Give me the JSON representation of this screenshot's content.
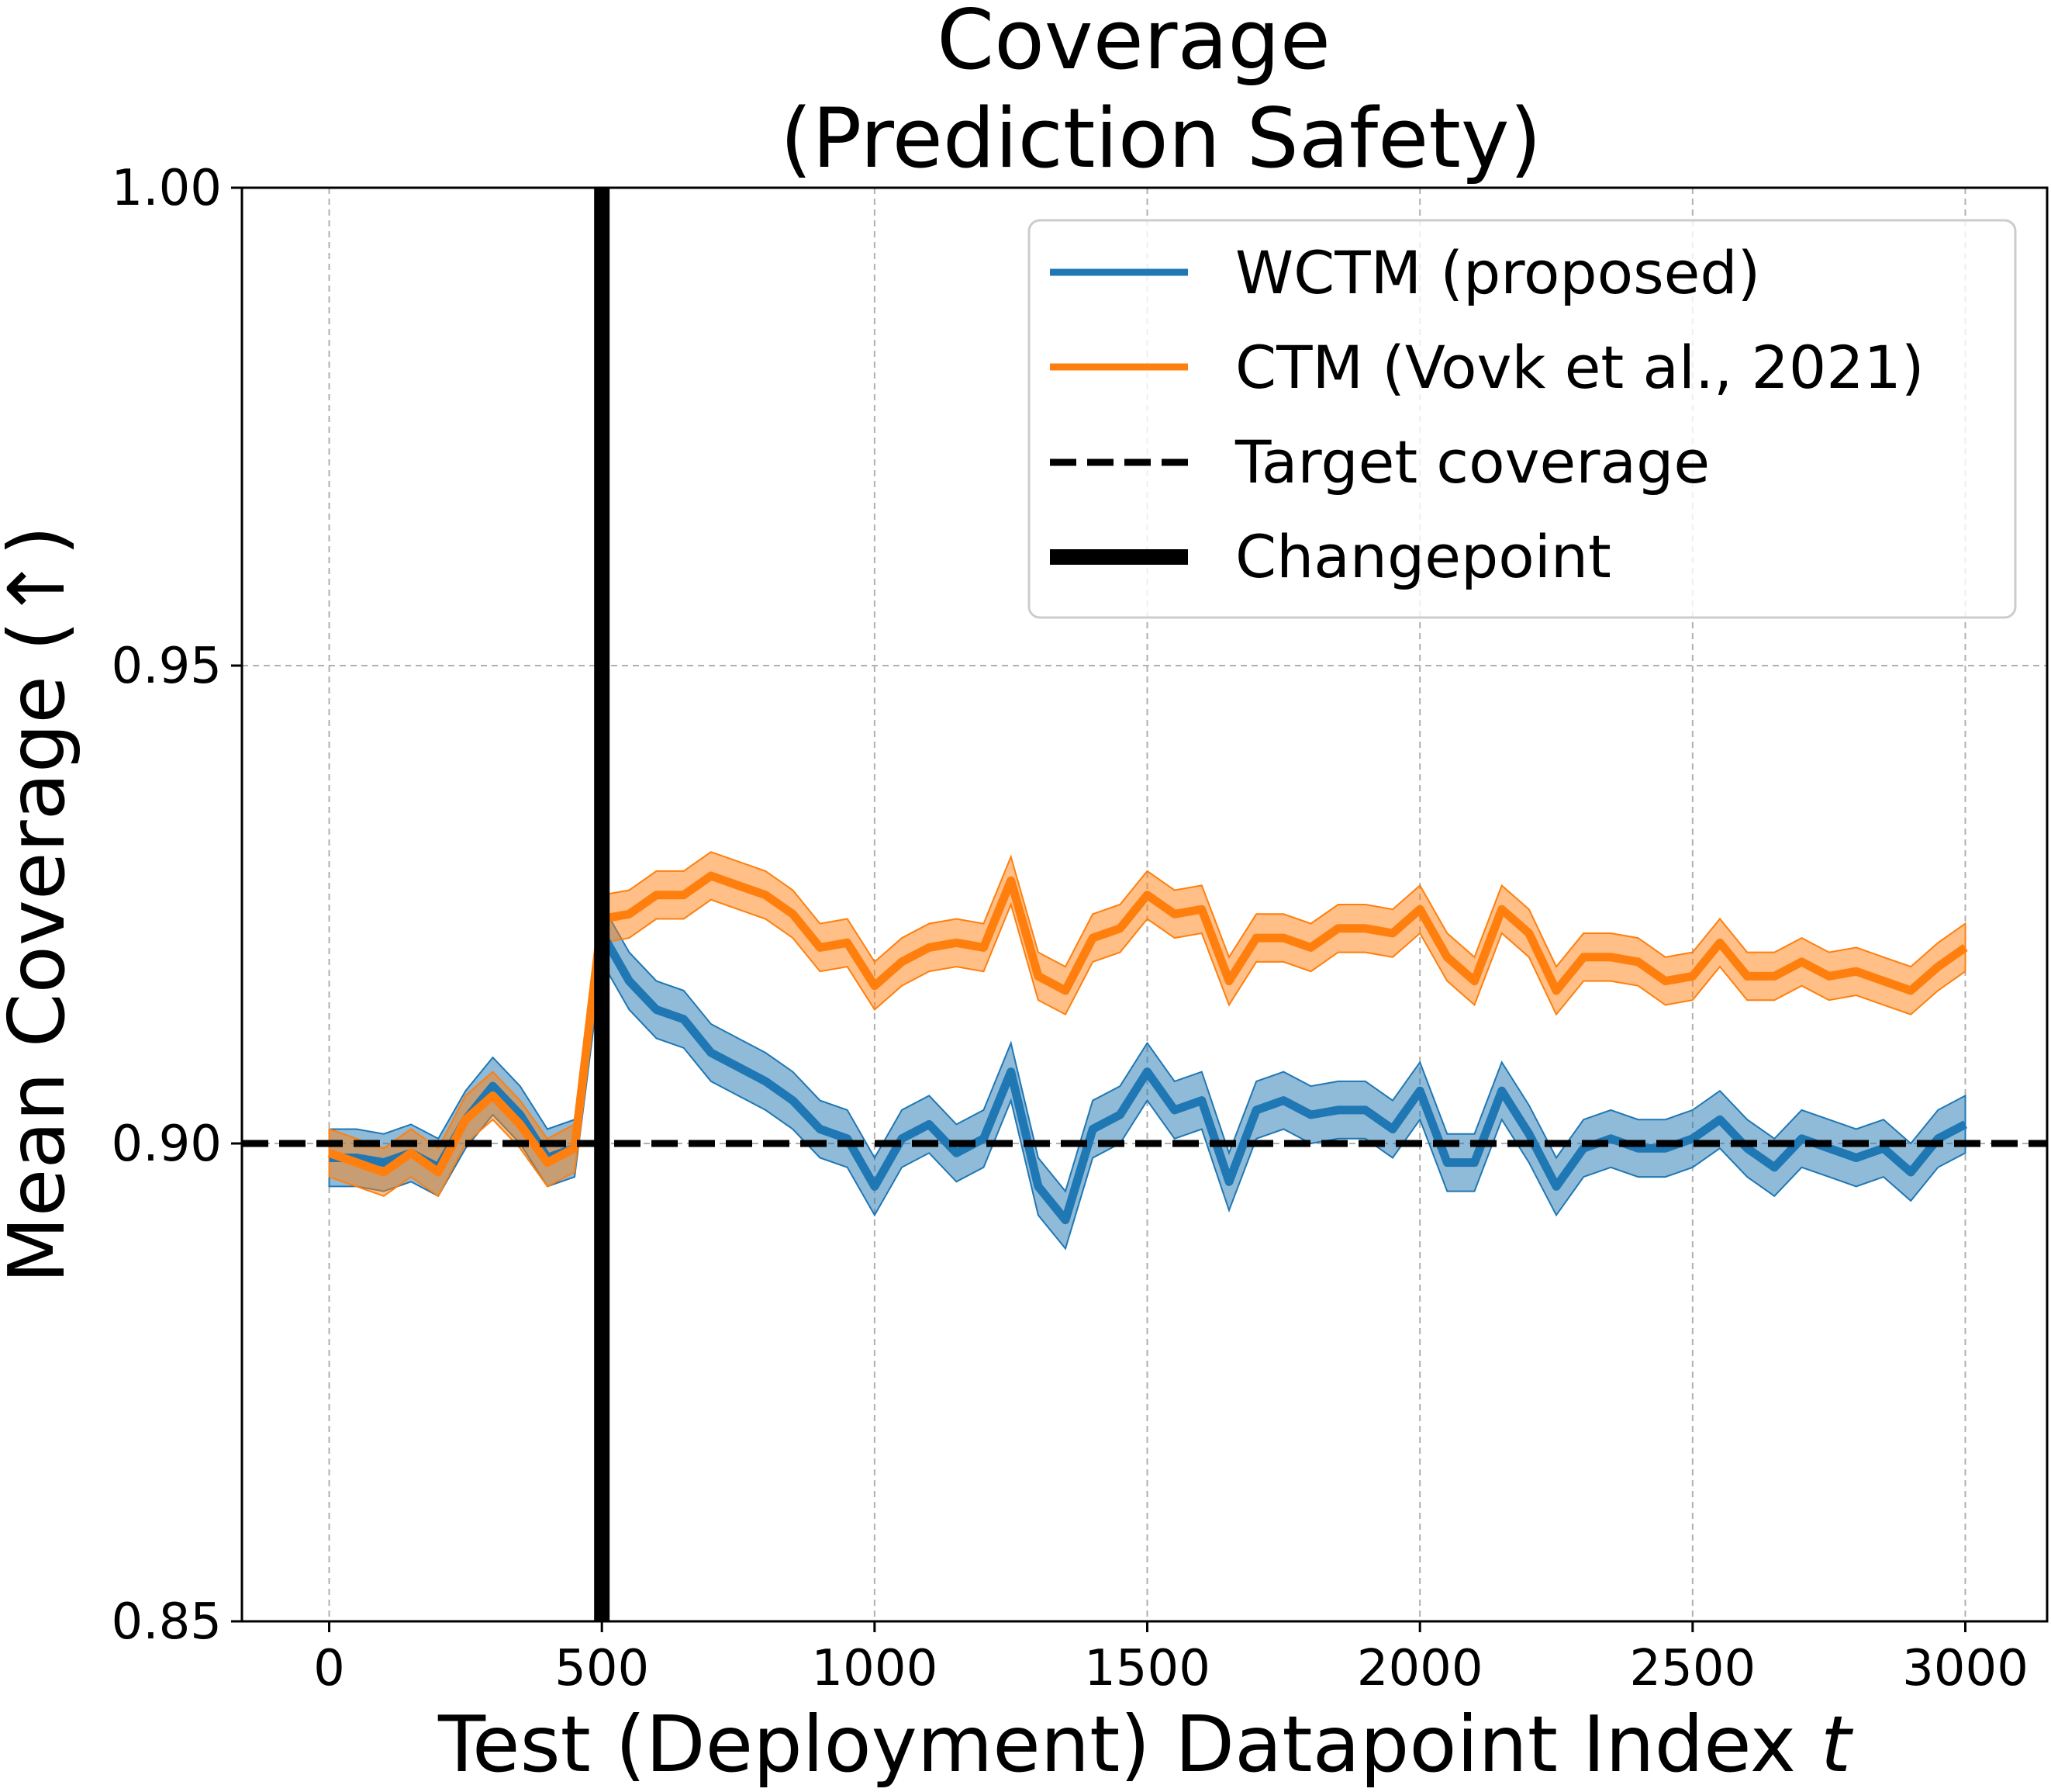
{
  "chart_data": {
    "type": "line",
    "title_lines": [
      "Coverage",
      "(Prediction Safety)"
    ],
    "xlabel": "Test (Deployment) Datapoint Index ",
    "xlabel_italic": "t",
    "ylabel": "Mean Coverage (↑)",
    "xlim": [
      -160,
      3150
    ],
    "ylim": [
      0.85,
      1.0
    ],
    "xticks": [
      0,
      500,
      1000,
      1500,
      2000,
      2500,
      3000
    ],
    "xtick_labels": [
      "0",
      "500",
      "1000",
      "1500",
      "2000",
      "2500",
      "3000"
    ],
    "yticks": [
      0.85,
      0.9,
      0.95,
      1.0
    ],
    "ytick_labels": [
      "0.85",
      "0.90",
      "0.95",
      "1.00"
    ],
    "grid": true,
    "legend_position": "top-right",
    "target_coverage": 0.9,
    "changepoint": 500,
    "x": [
      0,
      50,
      100,
      150,
      200,
      250,
      300,
      350,
      400,
      450,
      500,
      550,
      600,
      650,
      700,
      750,
      800,
      850,
      900,
      950,
      1000,
      1050,
      1100,
      1150,
      1200,
      1250,
      1300,
      1350,
      1400,
      1450,
      1500,
      1550,
      1600,
      1650,
      1700,
      1750,
      1800,
      1850,
      1900,
      1950,
      2000,
      2050,
      2100,
      2150,
      2200,
      2250,
      2300,
      2350,
      2400,
      2450,
      2500,
      2550,
      2600,
      2650,
      2700,
      2750,
      2800,
      2850,
      2900,
      2950,
      3000
    ],
    "series": [
      {
        "name": "WCTM (proposed)",
        "color": "#1f77b4",
        "values": [
          0.8985,
          0.8985,
          0.898,
          0.899,
          0.8975,
          0.9025,
          0.906,
          0.903,
          0.8985,
          0.8995,
          0.922,
          0.917,
          0.914,
          0.913,
          0.9095,
          0.908,
          0.9065,
          0.9045,
          0.9015,
          0.9005,
          0.8955,
          0.9005,
          0.902,
          0.899,
          0.9005,
          0.9075,
          0.8955,
          0.892,
          0.9015,
          0.903,
          0.9075,
          0.9035,
          0.9045,
          0.896,
          0.9035,
          0.9045,
          0.903,
          0.9035,
          0.9035,
          0.9015,
          0.9055,
          0.898,
          0.898,
          0.9055,
          0.901,
          0.8955,
          0.8995,
          0.9005,
          0.8995,
          0.8995,
          0.9005,
          0.9025,
          0.8995,
          0.8975,
          0.9005,
          0.8995,
          0.8985,
          0.8995,
          0.897,
          0.9005,
          0.902
        ],
        "band": 0.003
      },
      {
        "name": "CTM (Vovk et al., 2021)",
        "color": "#ff7f0e",
        "values": [
          0.899,
          0.898,
          0.897,
          0.899,
          0.897,
          0.9025,
          0.905,
          0.902,
          0.898,
          0.8995,
          0.9235,
          0.924,
          0.926,
          0.926,
          0.928,
          0.927,
          0.926,
          0.924,
          0.9205,
          0.921,
          0.9165,
          0.919,
          0.9205,
          0.921,
          0.9205,
          0.9275,
          0.9175,
          0.916,
          0.9215,
          0.9225,
          0.926,
          0.924,
          0.9245,
          0.917,
          0.9215,
          0.9215,
          0.9205,
          0.9225,
          0.9225,
          0.922,
          0.9245,
          0.9195,
          0.917,
          0.9245,
          0.922,
          0.916,
          0.9195,
          0.9195,
          0.919,
          0.917,
          0.9175,
          0.921,
          0.9175,
          0.9175,
          0.919,
          0.9175,
          0.918,
          0.917,
          0.916,
          0.9185,
          0.9205
        ],
        "band": 0.0025
      }
    ],
    "legend": [
      {
        "label": "WCTM (proposed)",
        "style": "line",
        "color": "#1f77b4"
      },
      {
        "label": "CTM (Vovk et al., 2021)",
        "style": "line",
        "color": "#ff7f0e"
      },
      {
        "label": "Target coverage",
        "style": "dashed",
        "color": "#000000"
      },
      {
        "label": "Changepoint",
        "style": "thick",
        "color": "#000000"
      }
    ]
  }
}
